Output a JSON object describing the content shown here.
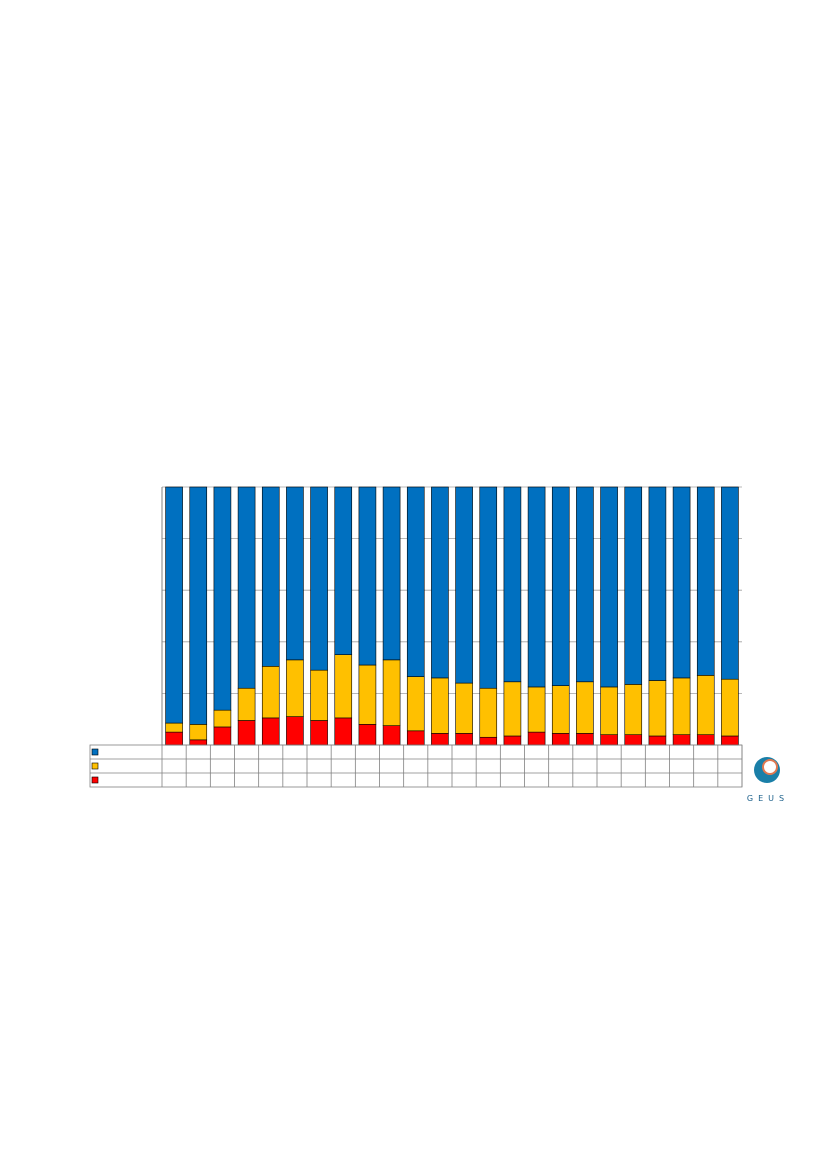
{
  "chart_data": {
    "type": "bar",
    "stacked": true,
    "categories": [
      null,
      null,
      null,
      null,
      null,
      null,
      null,
      null,
      null,
      null,
      null,
      null,
      null,
      null,
      null,
      null,
      null,
      null,
      null,
      null,
      null,
      null,
      null,
      null
    ],
    "series": [
      {
        "color": "#0070c0",
        "values": [
          91.5,
          92,
          86.5,
          78,
          69.5,
          67,
          71,
          65,
          69,
          67,
          73.5,
          74,
          76,
          78,
          75.5,
          77.5,
          77,
          75.5,
          77.5,
          76.5,
          75,
          74,
          73,
          74.5
        ]
      },
      {
        "color": "#ffc000",
        "values": [
          3.5,
          6,
          6.5,
          12.5,
          20,
          22,
          19.5,
          24.5,
          23,
          25.5,
          21,
          21.5,
          19.5,
          19,
          21,
          17.5,
          18.5,
          20,
          18.5,
          19.5,
          21.5,
          22,
          23,
          22
        ]
      },
      {
        "color": "#ff0000",
        "values": [
          5,
          2,
          7,
          9.5,
          10.5,
          11,
          9.5,
          10.5,
          8,
          7.5,
          5.5,
          4.5,
          4.5,
          3,
          3.5,
          5,
          4.5,
          4.5,
          4,
          4,
          3.5,
          4,
          4,
          3.5
        ]
      }
    ],
    "ylim": [
      0,
      100
    ],
    "yticks": [
      0,
      20,
      40,
      60,
      80,
      100
    ],
    "grid": true
  },
  "logo": {
    "text": "GEUS"
  }
}
